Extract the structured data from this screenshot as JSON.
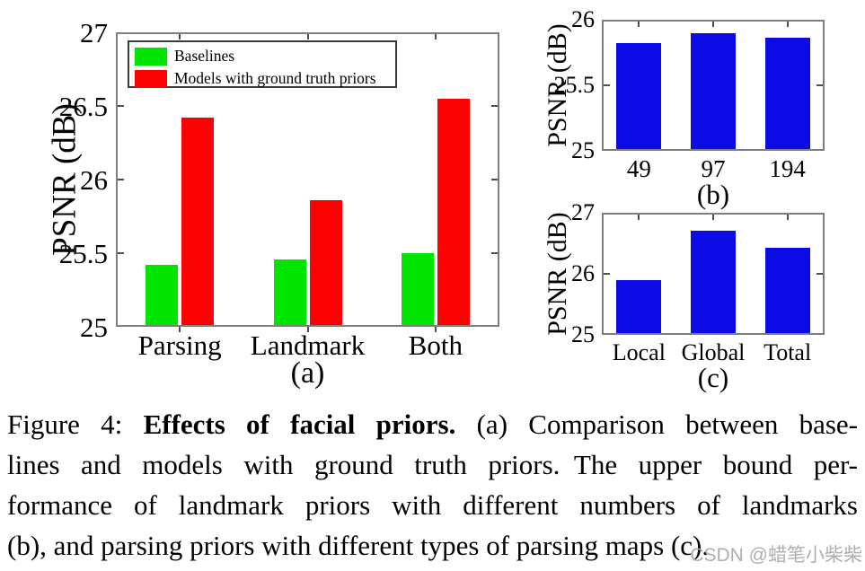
{
  "caption": {
    "line1_prefix": "Figure 4: ",
    "line1_bold": "Effects of facial priors.",
    "line1_rest": " (a) Comparison between base-",
    "line2": "lines and models with ground truth priors. The upper bound per-",
    "line3": "formance of landmark priors with different numbers of landmarks",
    "line4": "(b), and parsing priors with different types of parsing maps (c)."
  },
  "watermark": "CSDN @蜡笔小柴柴",
  "colors": {
    "baseline_green": "#00E400",
    "prior_red": "#FB0202",
    "bar_blue": "#0B0BE6",
    "axis_gray": "#7E7E7E",
    "tick_dark": "#4F4F4F",
    "watermark_gray": "#AEAEB4",
    "text_black": "#000000"
  },
  "chart_data": [
    {
      "type": "bar",
      "panel_label": "(a)",
      "title": "",
      "xlabel": "",
      "ylabel": "PSNR (dB)",
      "ylim": [
        25,
        27
      ],
      "yticks": [
        25,
        25.5,
        26,
        26.5,
        27
      ],
      "ytick_labels": [
        "25",
        "25.5",
        "26",
        "26.5",
        "27"
      ],
      "categories": [
        "Parsing",
        "Landmark",
        "Both"
      ],
      "series": [
        {
          "name": "Baselines",
          "color": "#00E400",
          "values": [
            25.42,
            25.46,
            25.5
          ]
        },
        {
          "name": "Models with ground truth priors",
          "color": "#FB0202",
          "values": [
            26.42,
            25.86,
            26.55
          ]
        }
      ],
      "legend_position": "top-left",
      "grid": false
    },
    {
      "type": "bar",
      "panel_label": "(b)",
      "title": "",
      "xlabel": "",
      "ylabel": "PSNR (dB)",
      "ylim": [
        25,
        26
      ],
      "yticks": [
        25,
        25.5,
        26
      ],
      "ytick_labels": [
        "25",
        "25.5",
        "26"
      ],
      "categories": [
        "49",
        "97",
        "194"
      ],
      "series": [
        {
          "name": "",
          "color": "#0B0BE6",
          "values": [
            25.82,
            25.9,
            25.86
          ]
        }
      ],
      "legend_position": "none",
      "grid": false
    },
    {
      "type": "bar",
      "panel_label": "(c)",
      "title": "",
      "xlabel": "",
      "ylabel": "PSNR (dB)",
      "ylim": [
        25,
        27
      ],
      "yticks": [
        25,
        26,
        27
      ],
      "ytick_labels": [
        "25",
        "26",
        "27"
      ],
      "categories": [
        "Local",
        "Global",
        "Total"
      ],
      "series": [
        {
          "name": "",
          "color": "#0B0BE6",
          "values": [
            25.9,
            26.7,
            26.42
          ]
        }
      ],
      "legend_position": "none",
      "grid": false
    }
  ]
}
